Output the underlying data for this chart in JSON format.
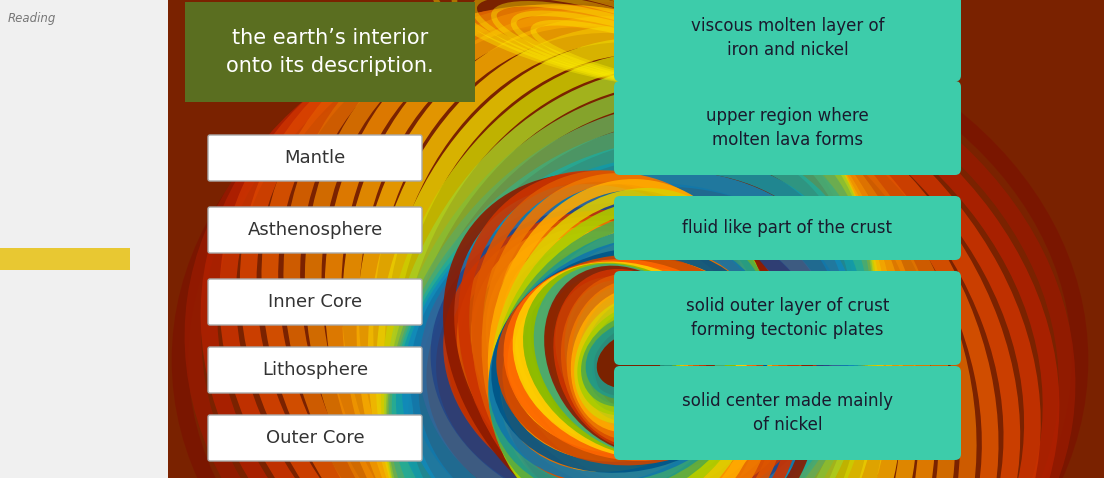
{
  "title_text": "the earth’s interior\nonto its description.",
  "title_bg": "#5a6e20",
  "title_color": "#ffffff",
  "left_labels": [
    "Mantle",
    "Asthenosphere",
    "Inner Core",
    "Lithosphere",
    "Outer Core"
  ],
  "right_labels": [
    "viscous molten layer of\niron and nickel",
    "upper region where\nmolten lava forms",
    "fluid like part of the crust",
    "solid outer layer of crust\nforming tectonic plates",
    "solid center made mainly\nof nickel"
  ],
  "left_box_bg": "#ffffff",
  "left_box_edge": "#aaaaaa",
  "right_box_bg": "#3dccaa",
  "right_box_edge": "#2aaa88",
  "left_text_color": "#333333",
  "right_text_color": "#1a1a2e",
  "sidebar_bg": "#f0f0f0",
  "sidebar_yellow": "#e8c832",
  "reading_color": "#777777",
  "swirl_colors": [
    "#8b1a00",
    "#cc3300",
    "#dd5500",
    "#ee7700",
    "#ffaa00",
    "#ddcc00",
    "#aacc00",
    "#55aa44",
    "#229988",
    "#1177aa",
    "#005588",
    "#cc4400",
    "#ff6600",
    "#ffcc00",
    "#88bb00",
    "#44aa77"
  ],
  "swirl_bg": "#7a2200",
  "right_area_bg": "#8b6914"
}
